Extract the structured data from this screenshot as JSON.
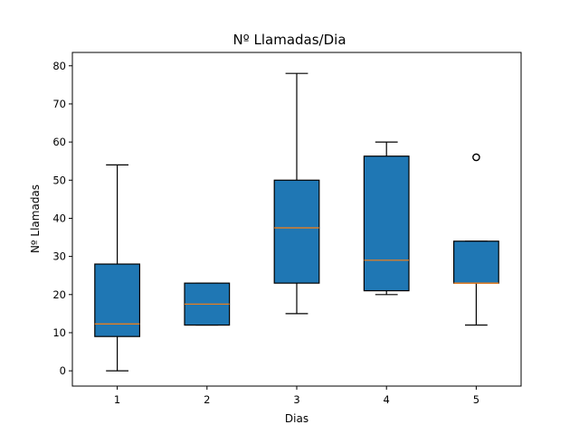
{
  "chart_data": {
    "type": "boxplot",
    "title": "Nº Llamadas/Dia",
    "xlabel": "Dias",
    "ylabel": "Nº Llamadas",
    "categories": [
      "1",
      "2",
      "3",
      "4",
      "5"
    ],
    "ylim": [
      -4,
      83.5
    ],
    "yticks": [
      0,
      10,
      20,
      30,
      40,
      50,
      60,
      70,
      80
    ],
    "box_color": "#1f77b4",
    "median_color": "#ff7f0e",
    "boxes": [
      {
        "whislo": 0,
        "q1": 9,
        "med": 12.3,
        "q3": 28,
        "whishi": 54,
        "fliers": []
      },
      {
        "whislo": 12,
        "q1": 12,
        "med": 17.5,
        "q3": 23,
        "whishi": 23,
        "fliers": []
      },
      {
        "whislo": 15,
        "q1": 23,
        "med": 37.5,
        "q3": 50,
        "whishi": 78,
        "fliers": []
      },
      {
        "whislo": 20,
        "q1": 21,
        "med": 29,
        "q3": 56.3,
        "whishi": 60,
        "fliers": []
      },
      {
        "whislo": 12,
        "q1": 23,
        "med": 23,
        "q3": 34,
        "whishi": 34,
        "fliers": [
          56
        ]
      }
    ]
  }
}
